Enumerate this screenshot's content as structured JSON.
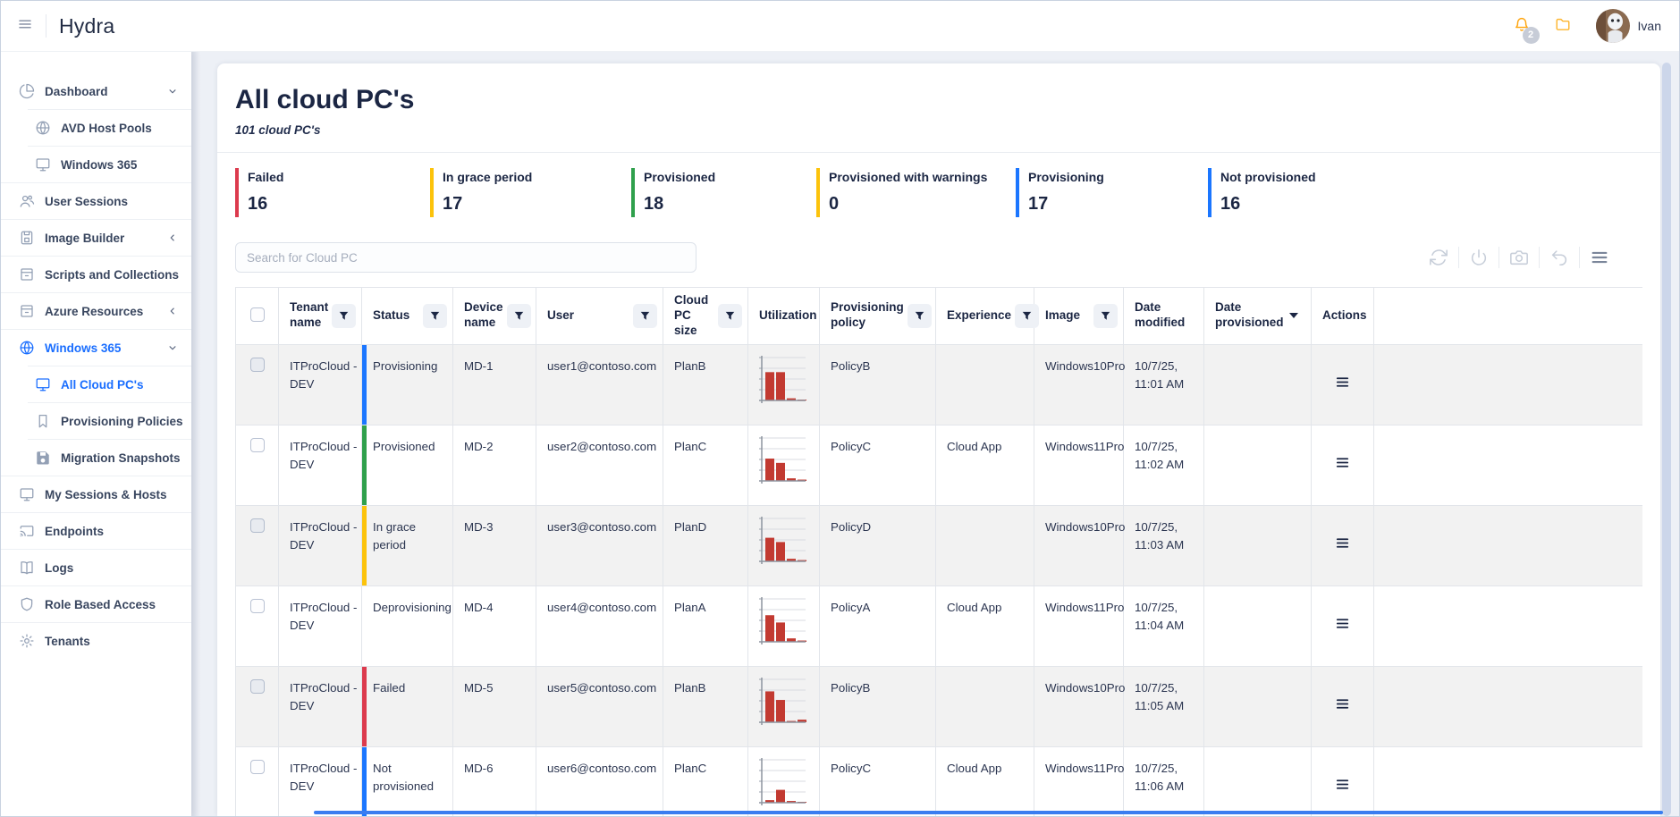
{
  "header": {
    "app_title": "Hydra",
    "user_name": "Ivan",
    "notification_badge": "2"
  },
  "sidebar": {
    "items": [
      {
        "label": "Dashboard",
        "icon": "pie-chart",
        "chevron": "down",
        "level": 0,
        "active": false
      },
      {
        "label": "AVD Host Pools",
        "icon": "globe",
        "chevron": null,
        "level": 1,
        "active": false
      },
      {
        "label": "Windows 365",
        "icon": "monitor",
        "chevron": null,
        "level": 1,
        "active": false
      },
      {
        "label": "User Sessions",
        "icon": "users",
        "chevron": null,
        "level": 0,
        "active": false
      },
      {
        "label": "Image Builder",
        "icon": "image-file",
        "chevron": "left",
        "level": 0,
        "active": false
      },
      {
        "label": "Scripts and Collections",
        "icon": "archive-box",
        "chevron": "left",
        "level": 0,
        "active": false
      },
      {
        "label": "Azure Resources",
        "icon": "archive-box",
        "chevron": "left",
        "level": 0,
        "active": false
      },
      {
        "label": "Windows 365",
        "icon": "globe",
        "chevron": "down",
        "level": 0,
        "active": true
      },
      {
        "label": "All Cloud PC's",
        "icon": "monitor",
        "chevron": null,
        "level": 1,
        "active": true
      },
      {
        "label": "Provisioning Policies",
        "icon": "bookmark",
        "chevron": null,
        "level": 1,
        "active": false
      },
      {
        "label": "Migration Snapshots",
        "icon": "save",
        "chevron": null,
        "level": 1,
        "active": false
      },
      {
        "label": "My Sessions & Hosts",
        "icon": "monitor",
        "chevron": null,
        "level": 0,
        "active": false
      },
      {
        "label": "Endpoints",
        "icon": "cast",
        "chevron": null,
        "level": 0,
        "active": false
      },
      {
        "label": "Logs",
        "icon": "book",
        "chevron": null,
        "level": 0,
        "active": false
      },
      {
        "label": "Role Based Access",
        "icon": "shield",
        "chevron": null,
        "level": 0,
        "active": false
      },
      {
        "label": "Tenants",
        "icon": "gear",
        "chevron": null,
        "level": 0,
        "active": false
      }
    ]
  },
  "page": {
    "title": "All cloud PC's",
    "subtitle": "101 cloud PC's"
  },
  "stats": [
    {
      "label": "Failed",
      "value": "16",
      "color": "#dc3a4d"
    },
    {
      "label": "In grace period",
      "value": "17",
      "color": "#fcc30b"
    },
    {
      "label": "Provisioned",
      "value": "18",
      "color": "#2fa04c"
    },
    {
      "label": "Provisioned with warnings",
      "value": "0",
      "color": "#fcc30b"
    },
    {
      "label": "Provisioning",
      "value": "17",
      "color": "#1b76ff"
    },
    {
      "label": "Not provisioned",
      "value": "16",
      "color": "#1b76ff"
    }
  ],
  "search": {
    "placeholder": "Search for Cloud PC"
  },
  "toolbar": {
    "icons": [
      "refresh",
      "power",
      "camera",
      "undo",
      "menu"
    ]
  },
  "table": {
    "utilization_bar_color": "#c23a31",
    "columns": [
      {
        "label": "",
        "type": "checkbox"
      },
      {
        "label": "Tenant name",
        "filter": true
      },
      {
        "label": "Status",
        "filter": true
      },
      {
        "label": "Device name",
        "filter": true
      },
      {
        "label": "User",
        "filter": true
      },
      {
        "label": "Cloud PC size",
        "filter": true
      },
      {
        "label": "Utilization",
        "filter": false
      },
      {
        "label": "Provisioning policy",
        "filter": true
      },
      {
        "label": "Experience",
        "filter": true
      },
      {
        "label": "Image",
        "filter": true
      },
      {
        "label": "Date modified",
        "filter": false
      },
      {
        "label": "Date provisioned",
        "filter": false,
        "sort": "desc"
      },
      {
        "label": "Actions",
        "filter": false
      },
      {
        "label": "",
        "type": "filler"
      }
    ],
    "rows": [
      {
        "tenant": "ITProCloud - DEV",
        "status": "Provisioning",
        "status_color": "#1b76ff",
        "device": "MD-1",
        "user": "user1@contoso.com",
        "size": "PlanB",
        "utilization": [
          66,
          66,
          5,
          2
        ],
        "policy": "PolicyB",
        "experience": "",
        "image": "Windows10Pro",
        "date_modified": "10/7/25, 11:01 AM",
        "date_provisioned": ""
      },
      {
        "tenant": "ITProCloud - DEV",
        "status": "Provisioned",
        "status_color": "#2fa04c",
        "device": "MD-2",
        "user": "user2@contoso.com",
        "size": "PlanC",
        "utilization": [
          52,
          42,
          6,
          3
        ],
        "policy": "PolicyC",
        "experience": "Cloud App",
        "image": "Windows11Pro",
        "date_modified": "10/7/25, 11:02 AM",
        "date_provisioned": ""
      },
      {
        "tenant": "ITProCloud - DEV",
        "status": "In grace period",
        "status_color": "#fcc30b",
        "device": "MD-3",
        "user": "user3@contoso.com",
        "size": "PlanD",
        "utilization": [
          55,
          45,
          6,
          3
        ],
        "policy": "PolicyD",
        "experience": "",
        "image": "Windows10Pro",
        "date_modified": "10/7/25, 11:03 AM",
        "date_provisioned": ""
      },
      {
        "tenant": "ITProCloud - DEV",
        "status": "Deprovisioning",
        "status_color": null,
        "device": "MD-4",
        "user": "user4@contoso.com",
        "size": "PlanA",
        "utilization": [
          62,
          45,
          8,
          3
        ],
        "policy": "PolicyA",
        "experience": "Cloud App",
        "image": "Windows11Pro",
        "date_modified": "10/7/25, 11:04 AM",
        "date_provisioned": ""
      },
      {
        "tenant": "ITProCloud - DEV",
        "status": "Failed",
        "status_color": "#dc3a4d",
        "device": "MD-5",
        "user": "user5@contoso.com",
        "size": "PlanB",
        "utilization": [
          72,
          52,
          3,
          6
        ],
        "policy": "PolicyB",
        "experience": "",
        "image": "Windows10Pro",
        "date_modified": "10/7/25, 11:05 AM",
        "date_provisioned": ""
      },
      {
        "tenant": "ITProCloud - DEV",
        "status": "Not provisioned",
        "status_color": "#1b76ff",
        "device": "MD-6",
        "user": "user6@contoso.com",
        "size": "PlanC",
        "utilization": [
          6,
          30,
          4,
          2
        ],
        "policy": "PolicyC",
        "experience": "Cloud App",
        "image": "Windows11Pro",
        "date_modified": "10/7/25, 11:06 AM",
        "date_provisioned": ""
      }
    ]
  }
}
